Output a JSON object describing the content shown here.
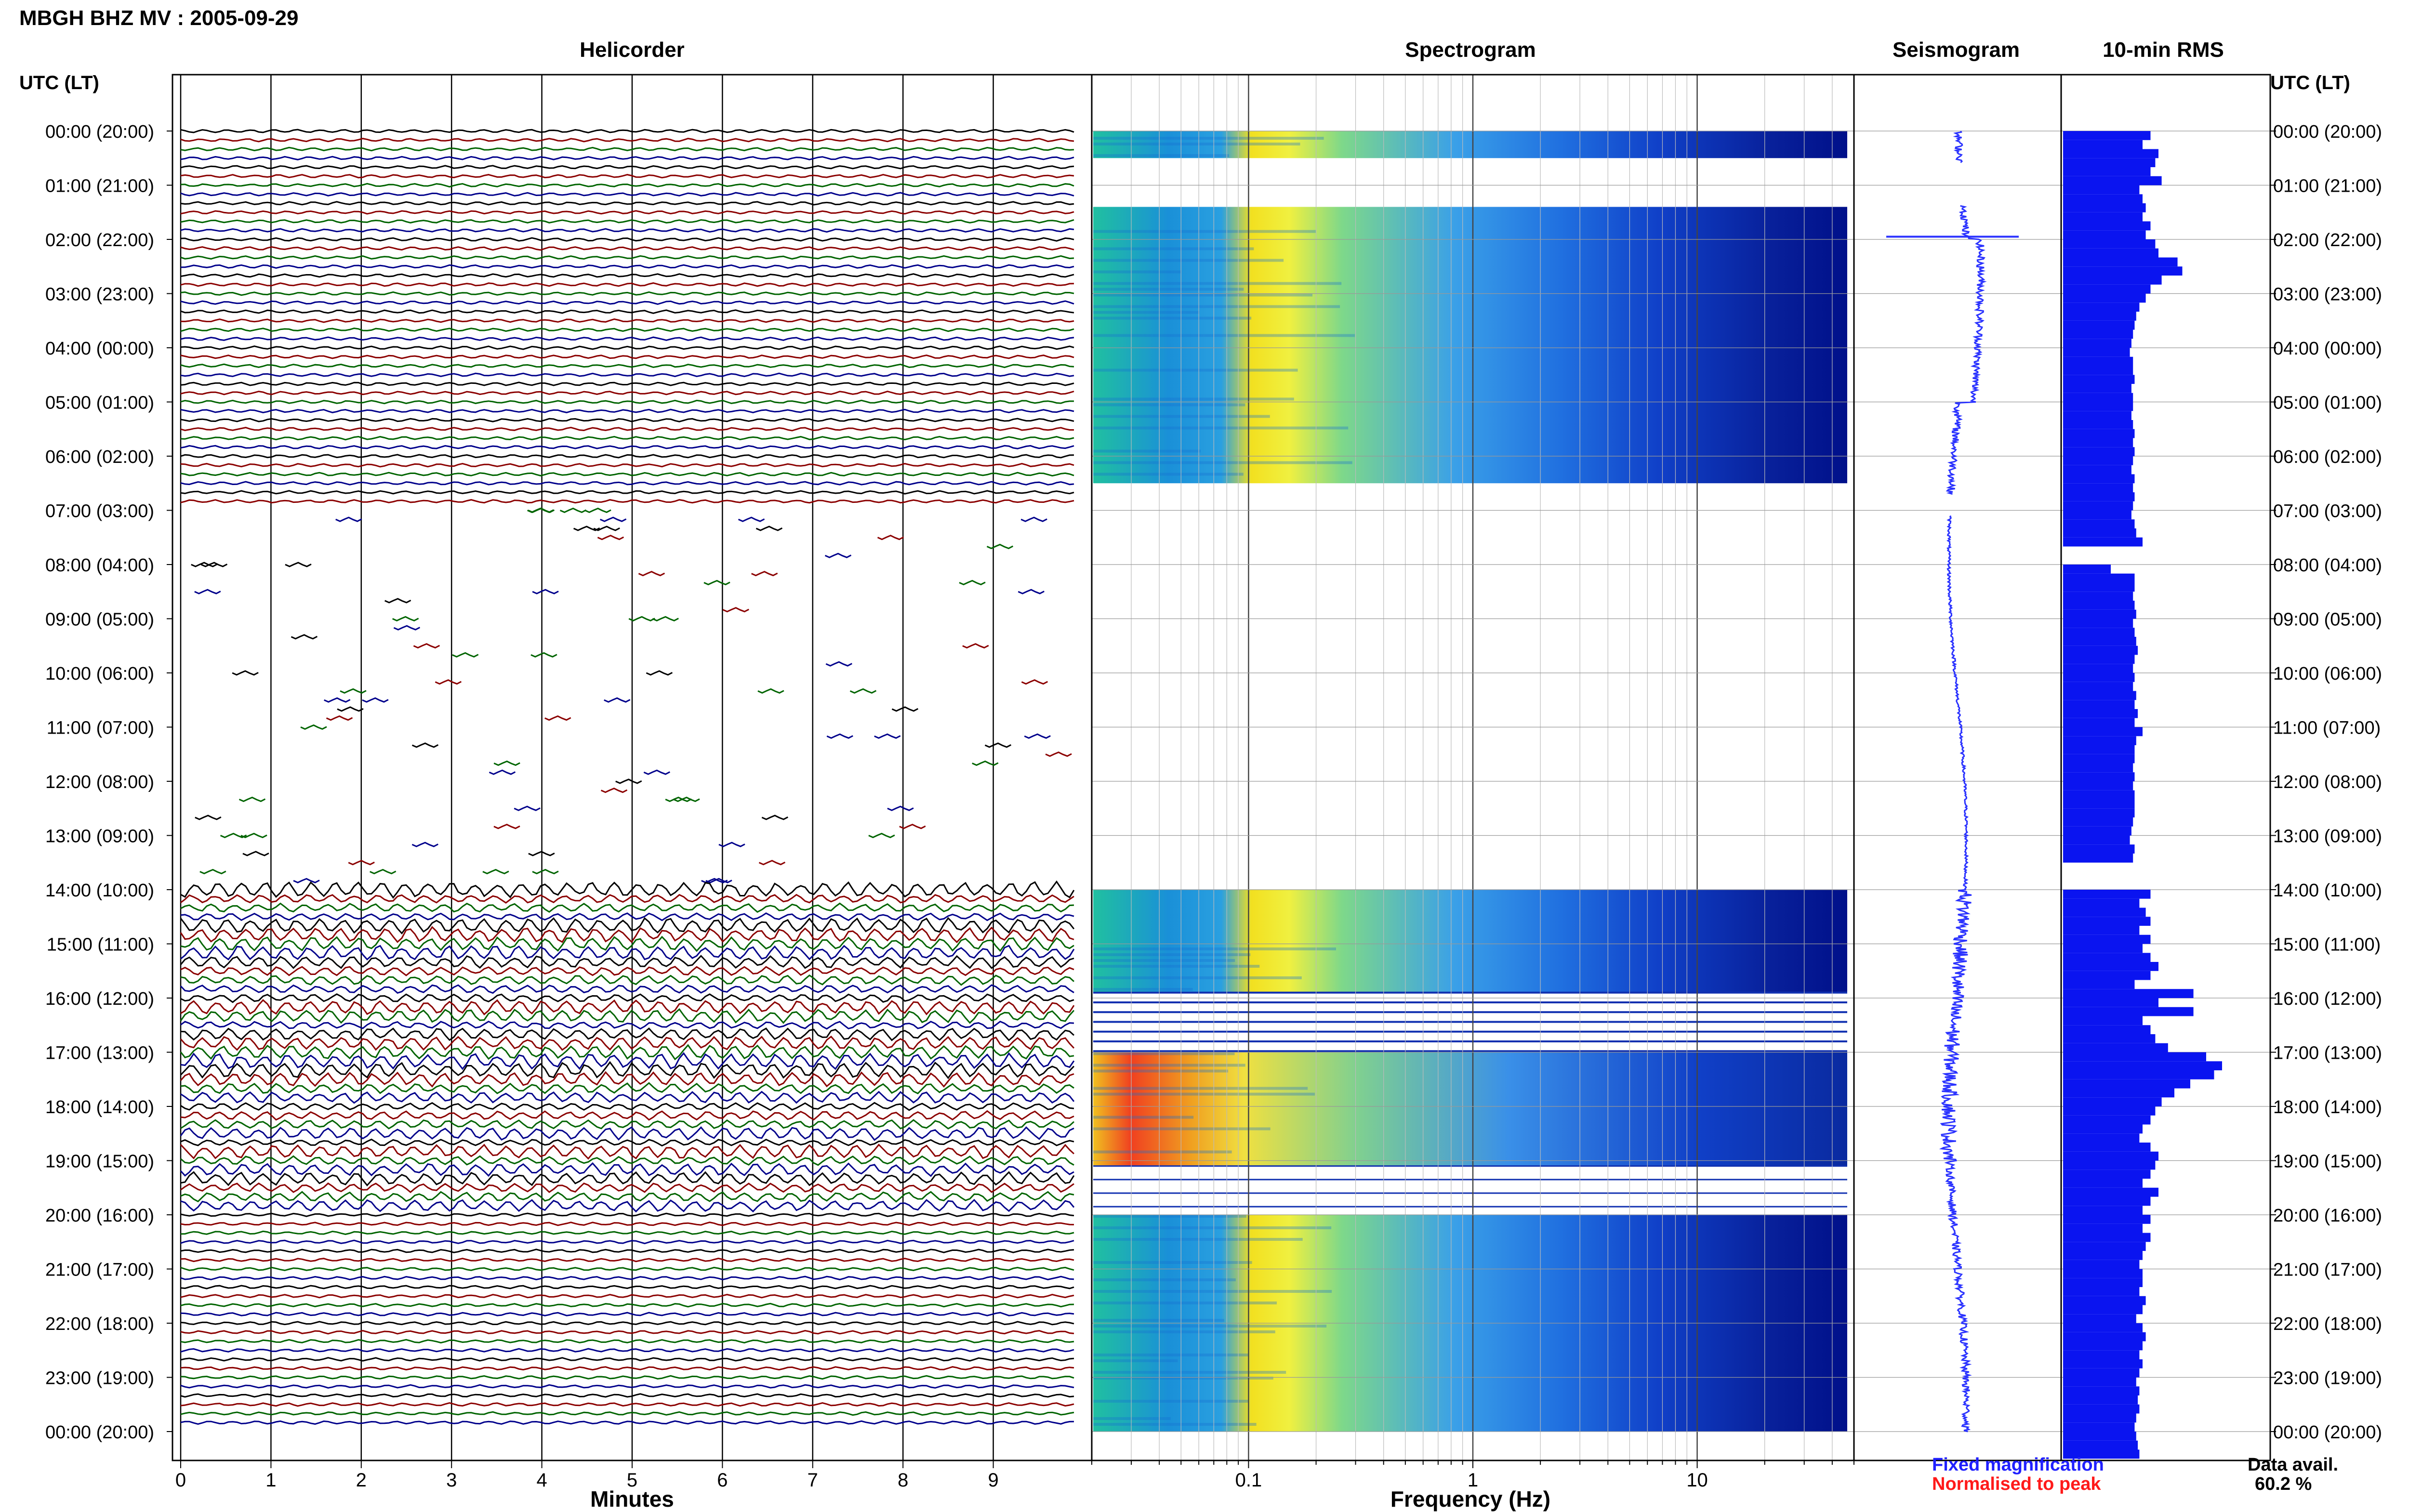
{
  "header": {
    "title": "MBGH BHZ MV : 2005-09-29",
    "left_axis_label": "UTC (LT)",
    "right_axis_label": "UTC (LT)"
  },
  "panels": {
    "helicorder": "Helicorder",
    "spectrogram": "Spectrogram",
    "seismogram": "Seismogram",
    "rms": "10-min RMS"
  },
  "axes": {
    "helicorder_xlabel": "Minutes",
    "spectrogram_xlabel": "Frequency (Hz)"
  },
  "legend": {
    "fixed": "Fixed magnification",
    "normalised": "Normalised to peak",
    "fixed_color": "#2020ff",
    "normalised_color": "#ff1a1a"
  },
  "availability": {
    "label": "Data avail.",
    "value": "60.2 %"
  },
  "colors": {
    "trace_colors": [
      "#000000",
      "#8b0000",
      "#006400",
      "#00008b"
    ],
    "rms_bar": "#0a14f0",
    "seismo": "#2a32ff",
    "spec_low": "#00108a",
    "spec_high": "#ffe000"
  },
  "chart_data": [
    {
      "type": "line",
      "title": "Helicorder",
      "xlabel": "Minutes",
      "x_ticks": [
        "0",
        "1",
        "2",
        "3",
        "4",
        "5",
        "6",
        "7",
        "8",
        "9"
      ],
      "xlim": [
        0,
        10
      ],
      "y_ticks": [
        "00:00 (20:00)",
        "01:00 (21:00)",
        "02:00 (22:00)",
        "03:00 (23:00)",
        "04:00 (00:00)",
        "05:00 (01:00)",
        "06:00 (02:00)",
        "07:00 (03:00)",
        "08:00 (04:00)",
        "09:00 (05:00)",
        "10:00 (06:00)",
        "11:00 (07:00)",
        "12:00 (08:00)",
        "13:00 (09:00)",
        "14:00 (10:00)",
        "15:00 (11:00)",
        "16:00 (12:00)",
        "17:00 (13:00)",
        "18:00 (14:00)",
        "19:00 (15:00)",
        "20:00 (16:00)",
        "21:00 (17:00)",
        "22:00 (18:00)",
        "23:00 (19:00)",
        "00:00 (20:00)"
      ],
      "lines_per_hour": 6,
      "gap_hours": [
        7,
        14
      ],
      "active_hours": [
        [
          14,
          20
        ]
      ]
    },
    {
      "type": "heatmap",
      "title": "Spectrogram",
      "xlabel": "Frequency (Hz)",
      "x_scale": "log",
      "x_ticks": [
        "0.1",
        "1",
        "10"
      ],
      "xlim": [
        0.02,
        50
      ],
      "data_segments_hours": [
        [
          0,
          0.5
        ],
        [
          1.4,
          6.5
        ],
        [
          14,
          15.9
        ],
        [
          17,
          19.1
        ],
        [
          20,
          24
        ]
      ],
      "peak_band_hz": [
        0.15,
        0.5
      ],
      "peak_band_2_hz": [
        0.04,
        0.08
      ]
    },
    {
      "type": "line",
      "title": "Seismogram",
      "ylim_hours": [
        0,
        24
      ]
    },
    {
      "type": "bar",
      "title": "10-min RMS",
      "orientation": "horizontal",
      "bin_minutes": 10,
      "gaps_hours": [
        [
          7.7,
          7.85
        ],
        [
          13.5,
          13.85
        ]
      ],
      "values": [
        0.55,
        0.5,
        0.6,
        0.58,
        0.55,
        0.62,
        0.48,
        0.5,
        0.52,
        0.5,
        0.55,
        0.52,
        0.58,
        0.6,
        0.72,
        0.75,
        0.62,
        0.55,
        0.52,
        0.48,
        0.46,
        0.45,
        0.44,
        0.43,
        0.42,
        0.44,
        0.44,
        0.45,
        0.43,
        0.44,
        0.44,
        0.43,
        0.44,
        0.45,
        0.44,
        0.45,
        0.44,
        0.43,
        0.45,
        0.44,
        0.45,
        0.44,
        0.43,
        0.45,
        0.46,
        0.5,
        0.52,
        0.55,
        0.3,
        0.45,
        0.45,
        0.44,
        0.45,
        0.46,
        0.44,
        0.45,
        0.46,
        0.47,
        0.45,
        0.44,
        0.45,
        0.44,
        0.46,
        0.45,
        0.47,
        0.45,
        0.5,
        0.46,
        0.45,
        0.45,
        0.44,
        0.45,
        0.44,
        0.45,
        0.45,
        0.45,
        0.44,
        0.43,
        0.42,
        0.45,
        0.44,
        0.43,
        0.62,
        0.66,
        0.55,
        0.48,
        0.52,
        0.55,
        0.48,
        0.55,
        0.5,
        0.55,
        0.6,
        0.55,
        0.45,
        0.82,
        0.6,
        0.82,
        0.5,
        0.55,
        0.58,
        0.66,
        0.9,
        1.0,
        0.95,
        0.8,
        0.7,
        0.62,
        0.58,
        0.55,
        0.5,
        0.48,
        0.55,
        0.6,
        0.58,
        0.55,
        0.5,
        0.6,
        0.55,
        0.5,
        0.55,
        0.5,
        0.55,
        0.52,
        0.5,
        0.48,
        0.5,
        0.5,
        0.48,
        0.52,
        0.5,
        0.46,
        0.5,
        0.52,
        0.5,
        0.48,
        0.5,
        0.48,
        0.46,
        0.48,
        0.47,
        0.48,
        0.46,
        0.45,
        0.46,
        0.47,
        0.48
      ],
      "ylim_hours": [
        0,
        24
      ]
    }
  ]
}
